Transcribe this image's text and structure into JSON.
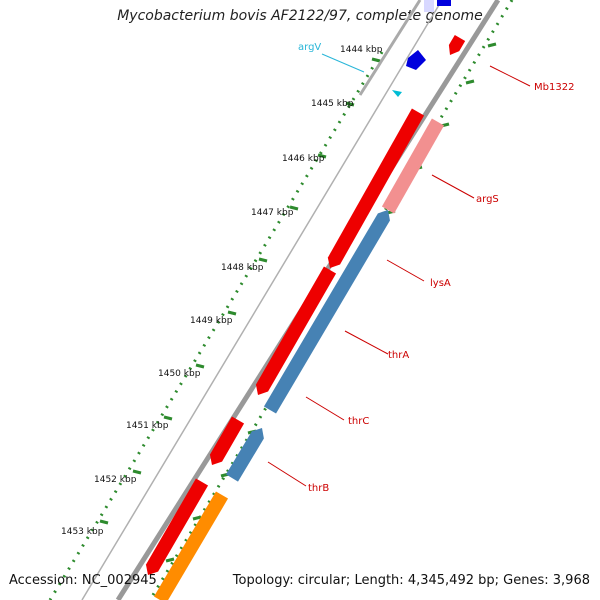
{
  "title": "Mycobacterium bovis AF2122/97, complete genome",
  "footer": {
    "accession_label": "Accession:",
    "accession": "NC_002945",
    "topology_label": "Topology:",
    "topology": "circular",
    "length_label": "Length:",
    "length": "4,345,492 bp",
    "genes_label": "Genes:",
    "genes": "3,968"
  },
  "colors": {
    "backbone": "#8a8a8a",
    "tick": "#2e8b2e",
    "forward_cds": "#ee0000",
    "forward_cds_light": "#f29090",
    "reverse_cds": "#4682b4",
    "reverse_other": "#ff8c00",
    "blue_feature": "#0000dd",
    "trna": "#00bcd4",
    "gene_label": "#cc0000",
    "trna_label": "#29b6d8"
  },
  "scale_labels": [
    "1444 kbp",
    "1445 kbp",
    "1446 kbp",
    "1447 kbp",
    "1448 kbp",
    "1449 kbp",
    "1450 kbp",
    "1451 kbp",
    "1452 kbp",
    "1453 kbp"
  ],
  "gene_labels": [
    {
      "name": "argV",
      "kind": "trna"
    },
    {
      "name": "Mb1322",
      "kind": "cds"
    },
    {
      "name": "argS",
      "kind": "cds"
    },
    {
      "name": "lysA",
      "kind": "cds"
    },
    {
      "name": "thrA",
      "kind": "cds"
    },
    {
      "name": "thrC",
      "kind": "cds"
    },
    {
      "name": "thrB",
      "kind": "cds"
    }
  ],
  "icons": [
    "forward-arrow-feature",
    "reverse-arrow-feature",
    "trna-arrow"
  ]
}
